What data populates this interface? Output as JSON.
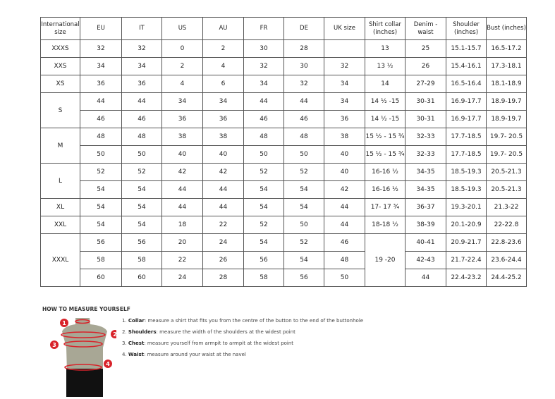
{
  "headers": [
    "International size",
    "EU",
    "IT",
    "US",
    "AU",
    "FR",
    "DE",
    "UK size",
    "Shirt collar (inches)",
    "Denim - waist",
    "Shoulder (inches)",
    "Bust (inches)"
  ],
  "groups": [
    {
      "label": "XXXS",
      "rows": [
        {
          "eu": "32",
          "it": "32",
          "us": "0",
          "au": "2",
          "fr": "30",
          "de": "28",
          "uk": "",
          "collar": "13",
          "denim": "25",
          "shoulder": "15.1-15.7",
          "bust": "16.5-17.2"
        }
      ]
    },
    {
      "label": "XXS",
      "rows": [
        {
          "eu": "34",
          "it": "34",
          "us": "2",
          "au": "4",
          "fr": "32",
          "de": "30",
          "uk": "32",
          "collar": "13 ½",
          "denim": "26",
          "shoulder": "15.4-16.1",
          "bust": "17.3-18.1"
        }
      ]
    },
    {
      "label": "XS",
      "rows": [
        {
          "eu": "36",
          "it": "36",
          "us": "4",
          "au": "6",
          "fr": "34",
          "de": "32",
          "uk": "34",
          "collar": "14",
          "denim": "27-29",
          "shoulder": "16.5-16.4",
          "bust": "18.1-18.9"
        }
      ]
    },
    {
      "label": "S",
      "rows": [
        {
          "eu": "44",
          "it": "44",
          "us": "34",
          "au": "34",
          "fr": "44",
          "de": "44",
          "uk": "34",
          "collar": "14 ½ -15",
          "denim": "30-31",
          "shoulder": "16.9-17.7",
          "bust": "18.9-19.7"
        },
        {
          "eu": "46",
          "it": "46",
          "us": "36",
          "au": "36",
          "fr": "46",
          "de": "46",
          "uk": "36",
          "collar": "14 ½ -15",
          "denim": "30-31",
          "shoulder": "16.9-17.7",
          "bust": "18.9-19.7"
        }
      ]
    },
    {
      "label": "M",
      "rows": [
        {
          "eu": "48",
          "it": "48",
          "us": "38",
          "au": "38",
          "fr": "48",
          "de": "48",
          "uk": "38",
          "collar": "15 ½ - 15 ¾",
          "denim": "32-33",
          "shoulder": "17.7-18.5",
          "bust": "19.7- 20.5"
        },
        {
          "eu": "50",
          "it": "50",
          "us": "40",
          "au": "40",
          "fr": "50",
          "de": "50",
          "uk": "40",
          "collar": "15 ½ - 15 ¾",
          "denim": "32-33",
          "shoulder": "17.7-18.5",
          "bust": "19.7- 20.5"
        }
      ]
    },
    {
      "label": "L",
      "rows": [
        {
          "eu": "52",
          "it": "52",
          "us": "42",
          "au": "42",
          "fr": "52",
          "de": "52",
          "uk": "40",
          "collar": "16-16 ½",
          "denim": "34-35",
          "shoulder": "18.5-19.3",
          "bust": "20.5-21.3"
        },
        {
          "eu": "54",
          "it": "54",
          "us": "44",
          "au": "44",
          "fr": "54",
          "de": "54",
          "uk": "42",
          "collar": "16-16 ½",
          "denim": "34-35",
          "shoulder": "18.5-19.3",
          "bust": "20.5-21.3"
        }
      ]
    },
    {
      "label": "XL",
      "rows": [
        {
          "eu": "54",
          "it": "54",
          "us": "44",
          "au": "44",
          "fr": "54",
          "de": "54",
          "uk": "44",
          "collar": "17- 17 ¾",
          "denim": "36-37",
          "shoulder": "19.3-20.1",
          "bust": "21.3-22"
        }
      ]
    },
    {
      "label": "XXL",
      "rows": [
        {
          "eu": "54",
          "it": "54",
          "us": "18",
          "au": "22",
          "fr": "52",
          "de": "50",
          "uk": "44",
          "collar": "18-18 ½",
          "denim": "38-39",
          "shoulder": "20.1-20.9",
          "bust": "22-22.8"
        }
      ]
    },
    {
      "label": "XXXL",
      "collar": "19 -20",
      "rows": [
        {
          "eu": "56",
          "it": "56",
          "us": "20",
          "au": "24",
          "fr": "54",
          "de": "52",
          "uk": "46",
          "denim": "40-41",
          "shoulder": "20.9-21.7",
          "bust": "22.8-23.6"
        },
        {
          "eu": "58",
          "it": "58",
          "us": "22",
          "au": "26",
          "fr": "56",
          "de": "54",
          "uk": "48",
          "denim": "42-43",
          "shoulder": "21.7-22.4",
          "bust": "23.6-24.4"
        },
        {
          "eu": "60",
          "it": "60",
          "us": "24",
          "au": "28",
          "fr": "58",
          "de": "56",
          "uk": "50",
          "denim": "44",
          "shoulder": "22.4-23.2",
          "bust": "24.4-25.2"
        }
      ]
    }
  ],
  "guide": {
    "title": "HOW TO MEASURE YOURSELF",
    "steps": [
      {
        "num": "1.",
        "name": "Collar",
        "text": ": measure a shirt that fits you from the centre of the button to the end of the buttonhole"
      },
      {
        "num": "2.",
        "name": "Shoulders",
        "text": ": measure the width of the shoulders at the widest point"
      },
      {
        "num": "3.",
        "name": "Chest",
        "text": ": measure yourself from armpit to armpit at the widest point"
      },
      {
        "num": "4.",
        "name": "Waist",
        "text": ": measure around your waist at the navel"
      }
    ],
    "markers": [
      "1",
      "2",
      "3",
      "4"
    ],
    "accent": "#d8232a"
  }
}
